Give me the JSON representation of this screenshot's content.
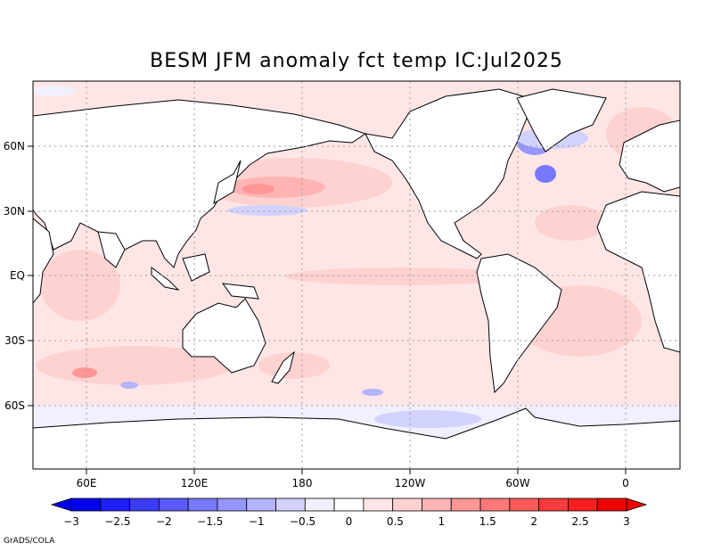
{
  "title": "BESM   JFM anomaly fct temp IC:Jul2025",
  "credit": "GrADS/COLA",
  "lat_labels": [
    "60N",
    "30N",
    "EQ",
    "30S",
    "60S"
  ],
  "lon_labels": [
    "60E",
    "120E",
    "180",
    "120W",
    "60W",
    "0"
  ],
  "colorbar": {
    "ticks": [
      "-3",
      "-2.5",
      "-2",
      "-1.5",
      "-1",
      "-0.5",
      "0",
      "0.5",
      "1",
      "1.5",
      "2",
      "2.5",
      "3"
    ],
    "colors": [
      "#0000f0",
      "#1e1eff",
      "#3c3cff",
      "#5a5aff",
      "#7878ff",
      "#9696ff",
      "#b4b4ff",
      "#d2d2ff",
      "#f0f0ff",
      "#ffffff",
      "#ffe6e6",
      "#ffd2d2",
      "#ffb4b4",
      "#ff9696",
      "#ff7878",
      "#ff5a5a",
      "#ff3c3c",
      "#ff1e1e",
      "#f00000"
    ]
  },
  "colors": {
    "land": "#ffffff",
    "coast": "#000000",
    "warm": "#ffd2d2",
    "cool": "#d2d2ff"
  }
}
